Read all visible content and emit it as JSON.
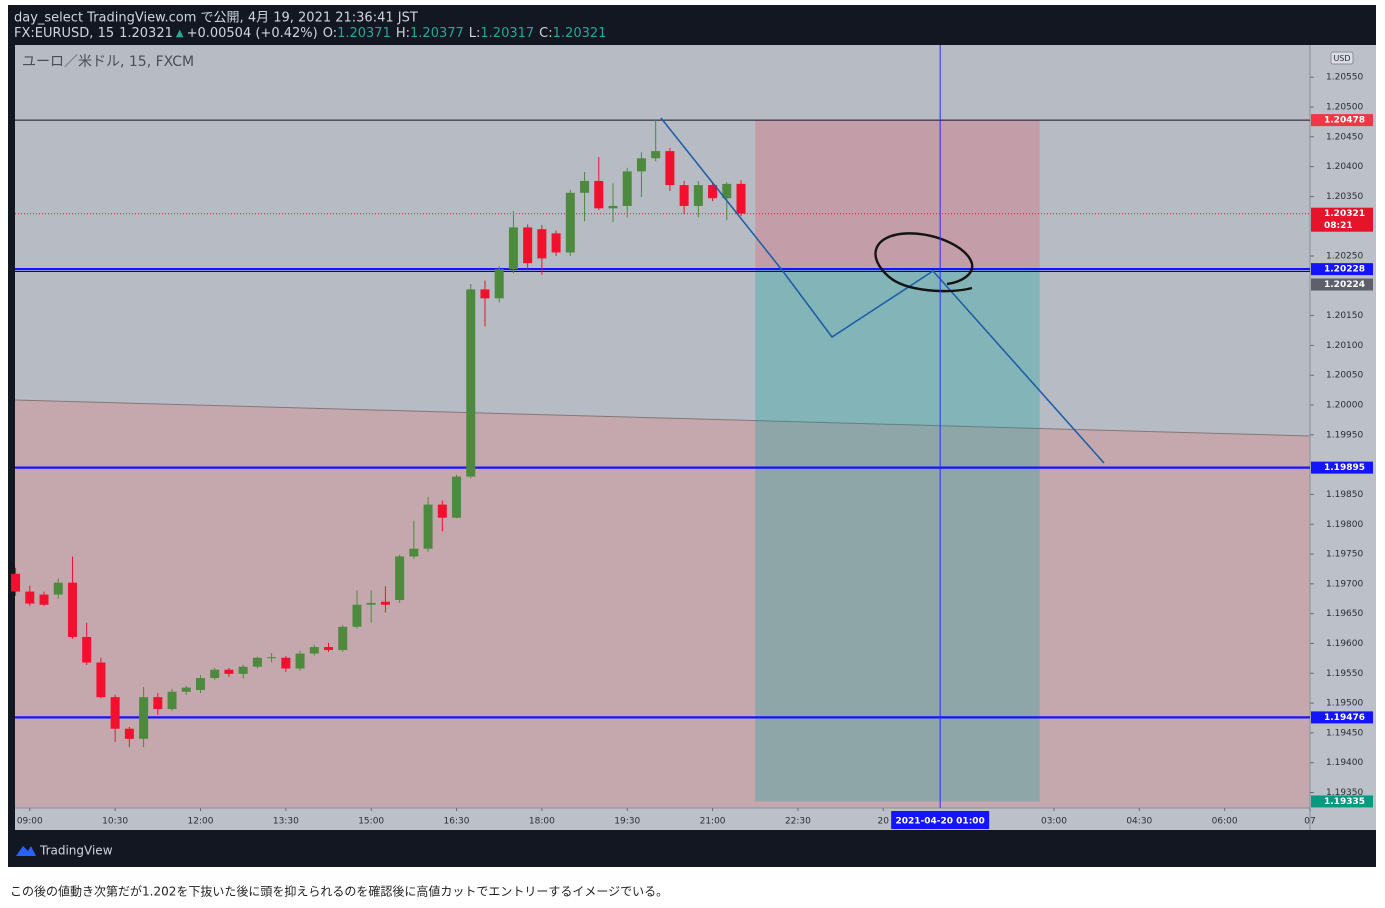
{
  "header": {
    "published": "day_select TradingView.com で公開, 4月 19, 2021 21:36:41 JST",
    "symbol": "FX:EURUSD, 15",
    "last": "1.20321",
    "arrow": "▲",
    "change": "+0.00504 (+0.42%)",
    "open_label": "O:",
    "open": "1.20371",
    "high_label": "H:",
    "high": "1.20377",
    "low_label": "L:",
    "low": "1.20317",
    "close_label": "C:",
    "close": "1.20321"
  },
  "chart_data": {
    "type": "candlestick",
    "legend": "ユーロ／米ドル, 15, FXCM",
    "currency": "USD",
    "up_color": "#4e8a3e",
    "down_color": "#f2102e",
    "x": [
      8.75,
      9,
      9.25,
      9.5,
      9.75,
      10,
      10.25,
      10.5,
      10.75,
      11,
      11.25,
      11.5,
      11.75,
      12,
      12.25,
      12.5,
      12.75,
      13,
      13.25,
      13.5,
      13.75,
      14,
      14.25,
      14.5,
      14.75,
      15,
      15.25,
      15.5,
      15.75,
      16,
      16.25,
      16.5,
      16.75,
      17,
      17.25,
      17.5,
      17.75,
      18,
      18.25,
      18.5,
      18.75,
      19,
      19.25,
      19.5,
      19.75,
      20,
      20.25,
      20.5,
      20.75,
      21,
      21.25,
      21.5
    ],
    "open": [
      1.19717,
      1.19687,
      1.19682,
      1.19682,
      1.19702,
      1.19611,
      1.19568,
      1.1951,
      1.19457,
      1.1944,
      1.1951,
      1.1949,
      1.19519,
      1.19522,
      1.19542,
      1.19556,
      1.19549,
      1.19561,
      1.19576,
      1.19576,
      1.19558,
      1.19583,
      1.19594,
      1.19589,
      1.19628,
      1.19665,
      1.1967,
      1.19673,
      1.19746,
      1.19759,
      1.19833,
      1.19811,
      1.1988,
      1.20194,
      1.20179,
      1.20228,
      1.20298,
      1.20295,
      1.20288,
      1.20256,
      1.20356,
      1.20376,
      1.2033,
      1.20334,
      1.20392,
      1.20414,
      1.20426,
      1.20369,
      1.20334,
      1.20369,
      1.20347,
      1.20371
    ],
    "high": [
      1.19727,
      1.19697,
      1.19687,
      1.19709,
      1.19746,
      1.19635,
      1.19576,
      1.19514,
      1.1946,
      1.19527,
      1.19517,
      1.19524,
      1.19529,
      1.19547,
      1.19559,
      1.19559,
      1.19564,
      1.19578,
      1.19584,
      1.19579,
      1.19588,
      1.19598,
      1.19601,
      1.19631,
      1.19689,
      1.19689,
      1.19696,
      1.19749,
      1.19806,
      1.19846,
      1.1984,
      1.19883,
      1.20203,
      1.20209,
      1.20233,
      1.20325,
      1.20303,
      1.20302,
      1.20293,
      1.20361,
      1.20391,
      1.20416,
      1.20372,
      1.20398,
      1.20424,
      1.20478,
      1.20431,
      1.20376,
      1.20376,
      1.20372,
      1.20374,
      1.20377
    ],
    "low": [
      1.1968,
      1.19663,
      1.19663,
      1.19675,
      1.19608,
      1.19564,
      1.19508,
      1.19435,
      1.19426,
      1.19426,
      1.1948,
      1.19487,
      1.19514,
      1.19517,
      1.19539,
      1.19544,
      1.19541,
      1.19558,
      1.19568,
      1.19552,
      1.19554,
      1.1958,
      1.19586,
      1.19586,
      1.19625,
      1.19635,
      1.19652,
      1.19668,
      1.19742,
      1.19754,
      1.19788,
      1.1981,
      1.19877,
      1.20132,
      1.20172,
      1.20221,
      1.20228,
      1.20219,
      1.2025,
      1.2025,
      1.20308,
      1.20327,
      1.20307,
      1.20315,
      1.20349,
      1.20409,
      1.20359,
      1.2032,
      1.20315,
      1.20342,
      1.2031,
      1.20317
    ],
    "close": [
      1.19687,
      1.19667,
      1.19665,
      1.19702,
      1.19611,
      1.19568,
      1.1951,
      1.19457,
      1.1944,
      1.1951,
      1.1949,
      1.19519,
      1.19526,
      1.19542,
      1.19556,
      1.19549,
      1.19561,
      1.19576,
      1.19577,
      1.19558,
      1.19583,
      1.19594,
      1.19589,
      1.19628,
      1.19665,
      1.19668,
      1.19665,
      1.19746,
      1.19759,
      1.19833,
      1.19811,
      1.1988,
      1.20194,
      1.20179,
      1.20228,
      1.20298,
      1.20238,
      1.20246,
      1.20256,
      1.20356,
      1.20376,
      1.2033,
      1.20334,
      1.20392,
      1.20414,
      1.20426,
      1.20369,
      1.20334,
      1.20369,
      1.20347,
      1.20371,
      1.20321
    ],
    "xlim": [
      8.74,
      31.5
    ],
    "xticks": [
      {
        "value": 9,
        "label": "09:00"
      },
      {
        "value": 10.5,
        "label": "10:30"
      },
      {
        "value": 12,
        "label": "12:00"
      },
      {
        "value": 13.5,
        "label": "13:30"
      },
      {
        "value": 15,
        "label": "15:00"
      },
      {
        "value": 16.5,
        "label": "16:30"
      },
      {
        "value": 18,
        "label": "18:00"
      },
      {
        "value": 19.5,
        "label": "19:30"
      },
      {
        "value": 21,
        "label": "21:00"
      },
      {
        "value": 22.5,
        "label": "22:30"
      },
      {
        "value": 24,
        "label": "20"
      },
      {
        "value": 27,
        "label": "03:00"
      },
      {
        "value": 28.5,
        "label": "04:30"
      },
      {
        "value": 30,
        "label": "06:00"
      },
      {
        "value": 31.5,
        "label": "07"
      }
    ],
    "ylim": [
      1.19324,
      1.20604
    ],
    "yticks": [
      {
        "value": 1.1935,
        "label": "1.19350"
      },
      {
        "value": 1.194,
        "label": "1.19400"
      },
      {
        "value": 1.1945,
        "label": "1.19450"
      },
      {
        "value": 1.195,
        "label": "1.19500"
      },
      {
        "value": 1.1955,
        "label": "1.19550"
      },
      {
        "value": 1.196,
        "label": "1.19600"
      },
      {
        "value": 1.1965,
        "label": "1.19650"
      },
      {
        "value": 1.197,
        "label": "1.19700"
      },
      {
        "value": 1.1975,
        "label": "1.19750"
      },
      {
        "value": 1.198,
        "label": "1.19800"
      },
      {
        "value": 1.1985,
        "label": "1.19850"
      },
      {
        "value": 1.1995,
        "label": "1.19950"
      },
      {
        "value": 1.2,
        "label": "1.20000"
      },
      {
        "value": 1.2005,
        "label": "1.20050"
      },
      {
        "value": 1.201,
        "label": "1.20100"
      },
      {
        "value": 1.2015,
        "label": "1.20150"
      },
      {
        "value": 1.2025,
        "label": "1.20250"
      },
      {
        "value": 1.2035,
        "label": "1.20350"
      },
      {
        "value": 1.204,
        "label": "1.20400"
      },
      {
        "value": 1.2045,
        "label": "1.20450"
      },
      {
        "value": 1.205,
        "label": "1.20500"
      },
      {
        "value": 1.2055,
        "label": "1.20550"
      }
    ],
    "price_lines": [
      {
        "value": 1.20478,
        "label_color": "#f23645",
        "line_color": "#131722",
        "line_style": "thin"
      },
      {
        "value": 1.20321,
        "label_color": "#e5142b",
        "line_color": "#e5142b",
        "line_style": "dotted",
        "countdown": "08:21"
      },
      {
        "value": 1.20228,
        "label_color": "#1414ff",
        "line_color": "#1414ff",
        "line_style": "thick"
      },
      {
        "value": 1.20224,
        "label_color": "#5d606b",
        "line_color": "#131722",
        "line_style": "thin"
      },
      {
        "value": 1.19895,
        "label_color": "#1414ff",
        "line_color": "#1414ff",
        "line_style": "thick"
      },
      {
        "value": 1.19476,
        "label_color": "#1414ff",
        "line_color": "#1414ff",
        "line_style": "thick"
      },
      {
        "value": 1.19335,
        "label_color": "#089981",
        "line_color": "#089981",
        "line_style": "none"
      }
    ],
    "position_tool": {
      "start": 21.75,
      "end": 26.75,
      "stop": 1.20478,
      "entry": 1.20228,
      "target": 1.19335
    },
    "crosshair": {
      "x": 25,
      "label": "2021-04-20  01:00"
    }
  },
  "footer": {
    "logo": "TradingView",
    "caption": "この後の値動き次第だが1.202を下抜いた後に頭を抑えられるのを確認後に高値カットでエントリーするイメージでいる。"
  }
}
